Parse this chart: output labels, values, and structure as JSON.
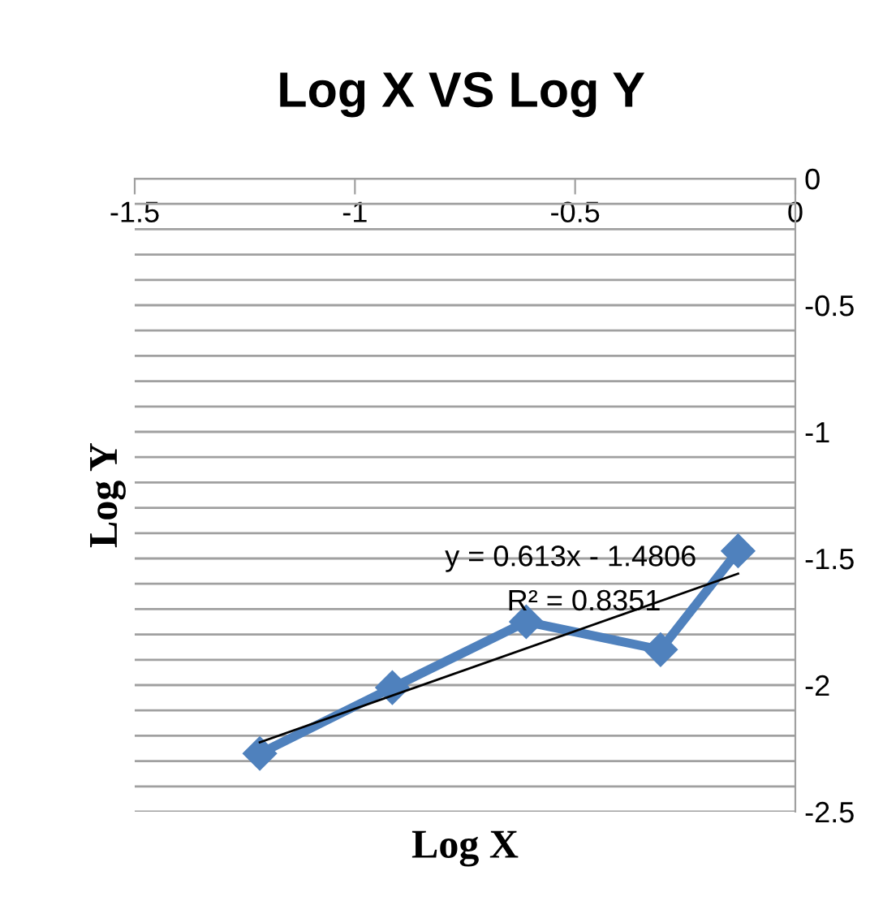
{
  "chart_data": {
    "type": "line",
    "title": "Log X VS Log Y",
    "xlabel": "Log X",
    "ylabel": "Log Y",
    "xlim": [
      -1.5,
      0
    ],
    "xticks": [
      -1.5,
      -1,
      -0.5,
      0
    ],
    "ylim": [
      -2.5,
      0
    ],
    "yticks": [
      0,
      {
        "value": -0.1,
        "label": null
      },
      {
        "value": -0.2,
        "label": null
      },
      {
        "value": -0.3,
        "label": null
      },
      {
        "value": -0.4,
        "label": null
      },
      -0.5,
      {
        "value": -0.6,
        "label": null
      },
      {
        "value": -0.7,
        "label": null
      },
      {
        "value": -0.8,
        "label": null
      },
      {
        "value": -0.9,
        "label": null
      },
      -1,
      {
        "value": -1.1,
        "label": null
      },
      {
        "value": -1.2,
        "label": null
      },
      {
        "value": -1.3,
        "label": null
      },
      {
        "value": -1.4,
        "label": null
      },
      -1.5,
      {
        "value": -1.6,
        "label": null
      },
      {
        "value": -1.7,
        "label": null
      },
      {
        "value": -1.8,
        "label": null
      },
      {
        "value": -1.9,
        "label": null
      },
      -2,
      {
        "value": -2.1,
        "label": null
      },
      {
        "value": -2.2,
        "label": null
      },
      {
        "value": -2.3,
        "label": null
      },
      {
        "value": -2.4,
        "label": null
      },
      -2.5
    ],
    "grid": "y",
    "legend": false,
    "series": [
      {
        "color": "#4f81bd",
        "marker": "diamond",
        "line_style": "solid",
        "x": [
          -1.216,
          -0.915,
          -0.611,
          -0.306,
          -0.13
        ],
        "values": [
          -2.27,
          -2.01,
          -1.75,
          -1.86,
          -1.47
        ]
      },
      {
        "type": "line",
        "color": "#000000",
        "marker": "none",
        "line_style": "solid",
        "x": [
          -1.216,
          -0.13
        ],
        "values": [
          -2.226,
          -1.56
        ]
      }
    ],
    "annotations": [
      "y = 0.613x - 1.4806",
      "R² = 0.8351"
    ]
  }
}
